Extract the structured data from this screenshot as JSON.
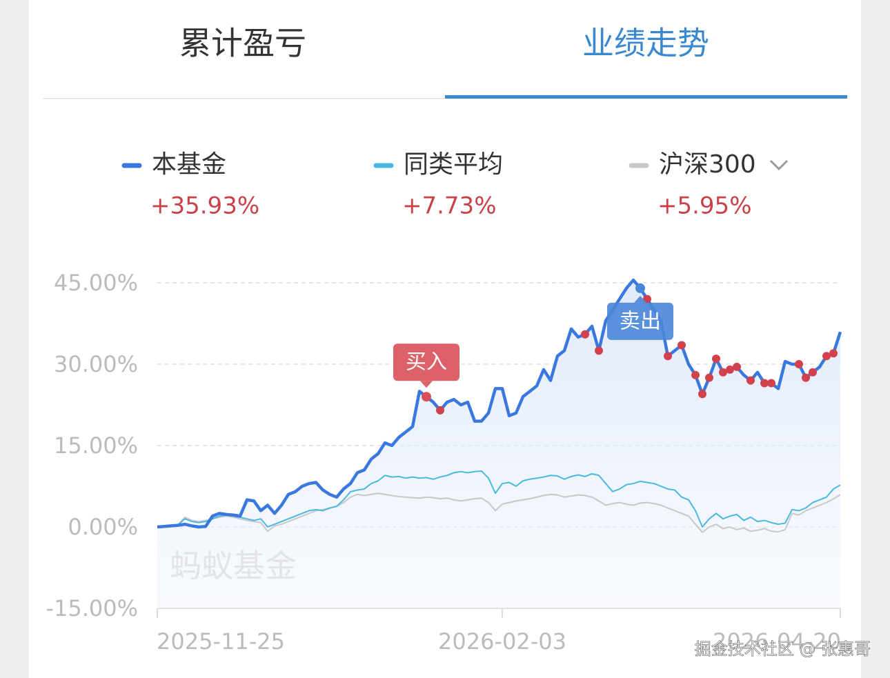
{
  "tabs": [
    "累计盈亏",
    "业绩走势"
  ],
  "chart_data": {
    "type": "line",
    "legend_values": [
      "+35.93%",
      "+7.73%",
      "+5.95%"
    ],
    "annotations": [
      "买入",
      "卖出"
    ],
    "watermark": "蚂蚁基金",
    "categories": [
      "2025-11-25",
      null,
      null,
      null,
      null,
      null,
      null,
      null,
      null,
      null,
      null,
      null,
      null,
      null,
      null,
      null,
      null,
      null,
      null,
      null,
      null,
      null,
      null,
      null,
      null,
      null,
      null,
      null,
      null,
      null,
      null,
      null,
      null,
      null,
      null,
      null,
      null,
      null,
      null,
      null,
      null,
      null,
      null,
      null,
      null,
      null,
      null,
      null,
      null,
      null,
      "2026-02-03",
      null,
      null,
      null,
      null,
      null,
      null,
      null,
      null,
      null,
      null,
      null,
      null,
      null,
      null,
      null,
      null,
      null,
      null,
      null,
      null,
      null,
      null,
      null,
      null,
      null,
      null,
      null,
      null,
      null,
      null,
      null,
      null,
      null,
      null,
      null,
      null,
      null,
      null,
      null,
      null,
      null,
      null,
      null,
      null,
      null,
      null,
      null,
      null,
      "2026-04-20"
    ],
    "series": [
      {
        "name": "本基金",
        "color": "#3a78e0",
        "values": [
          0,
          0.1,
          0.2,
          0.3,
          0.5,
          0.2,
          0,
          0.1,
          2,
          2.5,
          2.3,
          2.2,
          2.0,
          5,
          4.8,
          3,
          4,
          2.5,
          4,
          6,
          6.5,
          7.5,
          8,
          8.2,
          6.8,
          6,
          5.5,
          7,
          8,
          10,
          10.5,
          12.5,
          13.5,
          15.5,
          15,
          16.5,
          17.5,
          18.5,
          25,
          24,
          23,
          21.5,
          23,
          23.5,
          22.5,
          23,
          19.5,
          19.5,
          21,
          25.5,
          25.5,
          20.5,
          21,
          24,
          25,
          26,
          29,
          27,
          31.5,
          32.5,
          36.5,
          35,
          35.5,
          37,
          32.5,
          38,
          40,
          42,
          44,
          45.5,
          44,
          42,
          40,
          38,
          31.5,
          32.5,
          33.5,
          30,
          28,
          24.5,
          27.5,
          31,
          28.5,
          29,
          29.5,
          28,
          27,
          28.5,
          26.5,
          26.5,
          25.5,
          30.5,
          30,
          30,
          27.5,
          28.5,
          29.5,
          31.5,
          32,
          35.93
        ]
      },
      {
        "name": "同类平均",
        "color": "#4ab8e0",
        "values": [
          0,
          0.1,
          0.2,
          0.4,
          1.5,
          1,
          0.8,
          1,
          1.5,
          2,
          2.2,
          2,
          1.8,
          1.5,
          1.2,
          1.5,
          0,
          0.5,
          1,
          1.5,
          2,
          2.5,
          3,
          3.2,
          3,
          3.5,
          3.8,
          5,
          6.5,
          6.8,
          7,
          8,
          8.5,
          9.5,
          9.2,
          9.3,
          9,
          9.2,
          9,
          9.1,
          8.8,
          9.2,
          9.5,
          10,
          10.2,
          10,
          10.2,
          10.3,
          9,
          6.2,
          8,
          8.2,
          7.5,
          8.5,
          8.8,
          9,
          9.2,
          9.5,
          9.4,
          8.8,
          9.3,
          9.6,
          9.3,
          9.8,
          9.5,
          8,
          6.5,
          7,
          7.8,
          8,
          8.4,
          8.2,
          8,
          7.5,
          7,
          6.8,
          5.5,
          5,
          3,
          0,
          1.5,
          2.5,
          1.5,
          2,
          2.3,
          1.2,
          1.8,
          1,
          1.2,
          0.8,
          0.5,
          0.7,
          3.2,
          3,
          3.5,
          4.5,
          5,
          5.5,
          7,
          7.73
        ]
      },
      {
        "name": "沪深300",
        "color": "#c8c8c8",
        "values": [
          0,
          0.1,
          0.2,
          0.4,
          1.8,
          1.2,
          1,
          1.2,
          1.5,
          1.8,
          2,
          1.8,
          1.5,
          1.2,
          1,
          0.8,
          -0.8,
          0.2,
          0.5,
          1,
          1.5,
          2,
          2.5,
          3,
          3.2,
          3.5,
          3.8,
          4.5,
          5.5,
          6,
          5.8,
          6,
          6.2,
          6,
          5.8,
          5.6,
          5.5,
          5.4,
          5.3,
          5.5,
          5.4,
          5.2,
          5.3,
          5,
          4.8,
          5,
          5.2,
          5.3,
          4.5,
          3,
          4.2,
          4.5,
          4.8,
          5,
          5.2,
          5.5,
          5.8,
          6,
          5.9,
          5.5,
          5.7,
          5.9,
          5.8,
          5.5,
          4.8,
          4,
          4.3,
          4.5,
          4.2,
          4,
          4.4,
          4.5,
          4.3,
          4,
          3.5,
          3,
          2.5,
          2,
          0.5,
          -1,
          0,
          0.5,
          -0.3,
          0,
          -0.5,
          -0.2,
          -0.8,
          -0.6,
          -0.3,
          -0.8,
          -0.9,
          -0.5,
          2.5,
          2.2,
          3,
          3.5,
          4,
          4.5,
          5.2,
          5.95
        ]
      }
    ],
    "ylim": [
      -15,
      45
    ],
    "yticks": [
      {
        "value": -15,
        "label": "-15.00%"
      },
      {
        "value": 0,
        "label": "0.00%"
      },
      {
        "value": 15,
        "label": "15.00%"
      },
      {
        "value": 30,
        "label": "30.00%"
      },
      {
        "value": 45,
        "label": "45.00%"
      }
    ],
    "grid": true
  },
  "footer": "掘金技术社区 @ 张惠哥"
}
